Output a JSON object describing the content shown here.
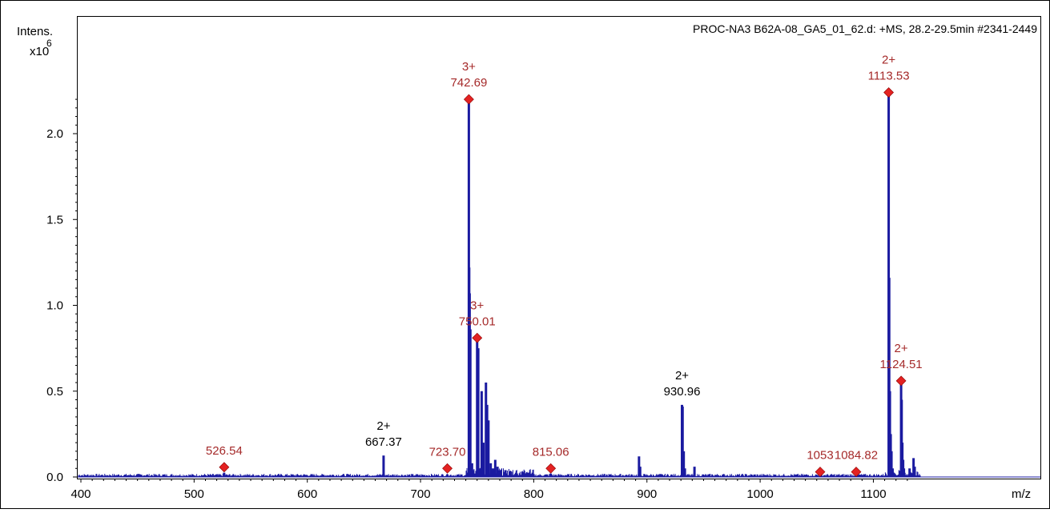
{
  "chart_data": {
    "type": "line",
    "title": "PROC-NA3 B62A-08_GA5_01_62.d: +MS, 28.2-29.5min #2341-2449",
    "ylabel": "Intens.",
    "yunit": "x10",
    "yexp": "6",
    "xlabel": "m/z",
    "xlim": [
      398,
      1142
    ],
    "ylim": [
      0,
      2.47
    ],
    "xticks": [
      400,
      500,
      600,
      700,
      800,
      900,
      1000,
      1100
    ],
    "yticks": [
      0.0,
      0.5,
      1.0,
      1.5,
      2.0
    ],
    "ytick_labels": [
      "0.0",
      "0.5",
      "1.0",
      "1.5",
      "2.0"
    ],
    "grid": false,
    "series_color": "#1a1aa0",
    "marker_color": "#e32222",
    "spectrum": [
      [
        526.54,
        0.025
      ],
      [
        667.37,
        0.125
      ],
      [
        723.7,
        0.015
      ],
      [
        742.69,
        2.2
      ],
      [
        743.0,
        1.22
      ],
      [
        743.4,
        1.07
      ],
      [
        744.0,
        0.86
      ],
      [
        745.5,
        0.08
      ],
      [
        746.5,
        0.04
      ],
      [
        750.01,
        0.81
      ],
      [
        751.0,
        0.75
      ],
      [
        752.5,
        0.05
      ],
      [
        754.0,
        0.5
      ],
      [
        755.5,
        0.2
      ],
      [
        757.8,
        0.55
      ],
      [
        758.8,
        0.42
      ],
      [
        760.0,
        0.33
      ],
      [
        762.0,
        0.08
      ],
      [
        764.0,
        0.05
      ],
      [
        766.0,
        0.1
      ],
      [
        768.0,
        0.06
      ],
      [
        770.0,
        0.04
      ],
      [
        775.0,
        0.04
      ],
      [
        780.0,
        0.03
      ],
      [
        790.0,
        0.03
      ],
      [
        815.06,
        0.02
      ],
      [
        893.0,
        0.12
      ],
      [
        894.0,
        0.06
      ],
      [
        930.96,
        0.42
      ],
      [
        931.5,
        0.41
      ],
      [
        932.5,
        0.15
      ],
      [
        933.5,
        0.05
      ],
      [
        942.0,
        0.06
      ],
      [
        1084.82,
        0.015
      ],
      [
        1053.0,
        0.015
      ],
      [
        1113.53,
        2.24
      ],
      [
        1114.0,
        1.16
      ],
      [
        1114.6,
        0.5
      ],
      [
        1115.3,
        0.25
      ],
      [
        1116.0,
        0.15
      ],
      [
        1117.0,
        0.05
      ],
      [
        1124.51,
        0.55
      ],
      [
        1125.0,
        0.45
      ],
      [
        1125.6,
        0.2
      ],
      [
        1126.3,
        0.1
      ],
      [
        1127.0,
        0.05
      ],
      [
        1132.0,
        0.05
      ],
      [
        1135.5,
        0.11
      ],
      [
        1136.5,
        0.06
      ]
    ],
    "annotations": [
      {
        "mz": 526.54,
        "y": 0.057,
        "charge": "",
        "label": "526.54",
        "marked": true
      },
      {
        "mz": 667.37,
        "y": 0.125,
        "charge": "2+",
        "label": "667.37",
        "marked": false
      },
      {
        "mz": 723.7,
        "y": 0.05,
        "charge": "",
        "label": "723.70",
        "marked": true
      },
      {
        "mz": 742.69,
        "y": 2.2,
        "charge": "3+",
        "label": "742.69",
        "marked": true
      },
      {
        "mz": 750.01,
        "y": 0.81,
        "charge": "3+",
        "label": "750.01",
        "marked": true
      },
      {
        "mz": 815.06,
        "y": 0.05,
        "charge": "",
        "label": "815.06",
        "marked": true
      },
      {
        "mz": 930.96,
        "y": 0.42,
        "charge": "2+",
        "label": "930.96",
        "marked": false
      },
      {
        "mz": 1053.0,
        "y": 0.03,
        "charge": "",
        "label": "1053",
        "marked": true
      },
      {
        "mz": 1084.82,
        "y": 0.03,
        "charge": "",
        "label": "1084.82",
        "marked": true
      },
      {
        "mz": 1113.53,
        "y": 2.24,
        "charge": "2+",
        "label": "1113.53",
        "marked": true
      },
      {
        "mz": 1124.51,
        "y": 0.56,
        "charge": "2+",
        "label": "1124.51",
        "marked": true
      }
    ]
  }
}
